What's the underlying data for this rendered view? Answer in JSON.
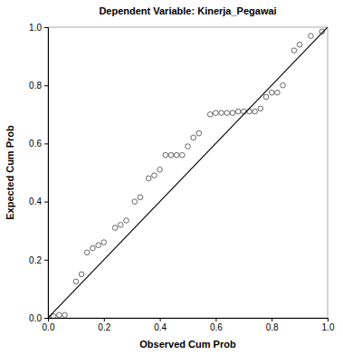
{
  "chart_data": {
    "type": "scatter",
    "title": "Dependent Variable: Kinerja_Pegawai",
    "x_label": "Observed Cum Prob",
    "y_label": "Expected Cum Prob",
    "xlim": [
      0,
      1
    ],
    "ylim": [
      0,
      1
    ],
    "xticks": [
      {
        "value": 0,
        "label": "0.0"
      },
      {
        "value": 0.2,
        "label": "0.2"
      },
      {
        "value": 0.4,
        "label": "0.4"
      },
      {
        "value": 0.6,
        "label": "0.6"
      },
      {
        "value": 0.8,
        "label": "0.8"
      },
      {
        "value": 1,
        "label": "1.0"
      }
    ],
    "yticks": [
      {
        "value": 0,
        "label": "0.0"
      },
      {
        "value": 0.2,
        "label": "0.2"
      },
      {
        "value": 0.4,
        "label": "0.4"
      },
      {
        "value": 0.6,
        "label": "0.6"
      },
      {
        "value": 0.8,
        "label": "0.8"
      },
      {
        "value": 1,
        "label": "1.0"
      }
    ],
    "grid": false,
    "series": [
      {
        "type": "scatter",
        "marker": "circle",
        "color": "#555555",
        "x": [
          0.0,
          0.02,
          0.04,
          0.06,
          0.1,
          0.12,
          0.14,
          0.16,
          0.18,
          0.2,
          0.24,
          0.26,
          0.28,
          0.31,
          0.33,
          0.36,
          0.38,
          0.4,
          0.42,
          0.44,
          0.46,
          0.48,
          0.5,
          0.52,
          0.54,
          0.58,
          0.6,
          0.62,
          0.64,
          0.66,
          0.68,
          0.7,
          0.72,
          0.74,
          0.76,
          0.78,
          0.8,
          0.82,
          0.84,
          0.88,
          0.9,
          0.94,
          0.98
        ],
        "values": [
          0.0,
          0.005,
          0.01,
          0.01,
          0.125,
          0.15,
          0.225,
          0.24,
          0.25,
          0.26,
          0.31,
          0.32,
          0.335,
          0.4,
          0.415,
          0.48,
          0.49,
          0.51,
          0.56,
          0.56,
          0.56,
          0.56,
          0.59,
          0.62,
          0.635,
          0.7,
          0.705,
          0.705,
          0.705,
          0.705,
          0.71,
          0.71,
          0.71,
          0.71,
          0.72,
          0.76,
          0.775,
          0.775,
          0.8,
          0.92,
          0.94,
          0.97,
          0.985
        ]
      },
      {
        "type": "line",
        "line_style": "solid",
        "color": "#000000",
        "x": [
          0,
          1
        ],
        "values": [
          0,
          1
        ]
      }
    ]
  }
}
